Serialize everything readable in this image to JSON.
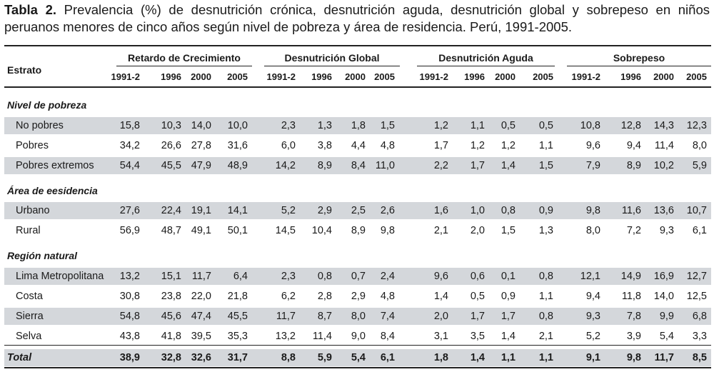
{
  "caption": {
    "label": "Tabla 2.",
    "text": " Prevalencia (%) de desnutrición crónica, desnutrición aguda, desnutrición global y sobrepeso en niños peruanos menores de cinco años según nivel de pobreza y área de residencia. Perú, 1991-2005."
  },
  "header": {
    "estrato": "Estrato",
    "groups": [
      "Retardo de Crecimiento",
      "Desnutrición Global",
      "Desnutrición Aguda",
      "Sobrepeso"
    ],
    "years": [
      "1991-2",
      "1996",
      "2000",
      "2005"
    ]
  },
  "sections": [
    {
      "title": "Nivel de pobreza",
      "rows": [
        {
          "label": "No pobres",
          "shaded": true,
          "values": [
            "15,8",
            "10,3",
            "14,0",
            "10,0",
            "2,3",
            "1,3",
            "1,8",
            "1,5",
            "1,2",
            "1,1",
            "0,5",
            "0,5",
            "10,8",
            "12,8",
            "14,3",
            "12,3"
          ]
        },
        {
          "label": "Pobres",
          "shaded": false,
          "values": [
            "34,2",
            "26,6",
            "27,8",
            "31,6",
            "6,0",
            "3,8",
            "4,4",
            "4,8",
            "1,7",
            "1,2",
            "1,2",
            "1,1",
            "9,6",
            "9,4",
            "11,4",
            "8,0"
          ]
        },
        {
          "label": "Pobres extremos",
          "shaded": true,
          "values": [
            "54,4",
            "45,5",
            "47,9",
            "48,9",
            "14,2",
            "8,9",
            "8,4",
            "11,0",
            "2,2",
            "1,7",
            "1,4",
            "1,5",
            "7,9",
            "8,9",
            "10,2",
            "5,9"
          ]
        }
      ]
    },
    {
      "title": "Área de eesidencia",
      "rows": [
        {
          "label": "Urbano",
          "shaded": true,
          "values": [
            "27,6",
            "22,4",
            "19,1",
            "14,1",
            "5,2",
            "2,9",
            "2,5",
            "2,6",
            "1,6",
            "1,0",
            "0,8",
            "0,9",
            "9,8",
            "11,6",
            "13,6",
            "10,7"
          ]
        },
        {
          "label": "Rural",
          "shaded": false,
          "values": [
            "56,9",
            "48,7",
            "49,1",
            "50,1",
            "14,5",
            "10,4",
            "8,9",
            "9,8",
            "2,1",
            "2,0",
            "1,5",
            "1,3",
            "8,0",
            "7,2",
            "9,3",
            "6,1"
          ]
        }
      ]
    },
    {
      "title": "Región natural",
      "rows": [
        {
          "label": "Lima Metropolitana",
          "shaded": true,
          "values": [
            "13,2",
            "15,1",
            "11,7",
            "6,4",
            "2,3",
            "0,8",
            "0,7",
            "2,4",
            "9,6",
            "0,6",
            "0,1",
            "0,8",
            "12,1",
            "14,9",
            "16,9",
            "12,7"
          ]
        },
        {
          "label": "Costa",
          "shaded": false,
          "values": [
            "30,8",
            "23,8",
            "22,0",
            "21,8",
            "6,2",
            "2,8",
            "2,9",
            "4,8",
            "1,4",
            "0,5",
            "0,9",
            "1,1",
            "9,4",
            "11,8",
            "14,0",
            "12,5"
          ]
        },
        {
          "label": "Sierra",
          "shaded": true,
          "values": [
            "54,8",
            "45,6",
            "47,4",
            "45,5",
            "11,7",
            "8,7",
            "8,0",
            "7,4",
            "2,0",
            "1,7",
            "1,7",
            "0,8",
            "9,3",
            "7,8",
            "9,9",
            "6,8"
          ]
        },
        {
          "label": "Selva",
          "shaded": false,
          "values": [
            "43,8",
            "41,8",
            "39,5",
            "35,3",
            "13,2",
            "11,4",
            "9,0",
            "8,4",
            "3,1",
            "3,5",
            "1,4",
            "2,1",
            "5,2",
            "3,9",
            "5,4",
            "3,3"
          ]
        }
      ]
    }
  ],
  "total": {
    "label": "Total",
    "values": [
      "38,9",
      "32,8",
      "32,6",
      "31,7",
      "8,8",
      "5,9",
      "5,4",
      "6,1",
      "1,8",
      "1,4",
      "1,1",
      "1,1",
      "9,1",
      "9,8",
      "11,7",
      "8,5"
    ]
  }
}
